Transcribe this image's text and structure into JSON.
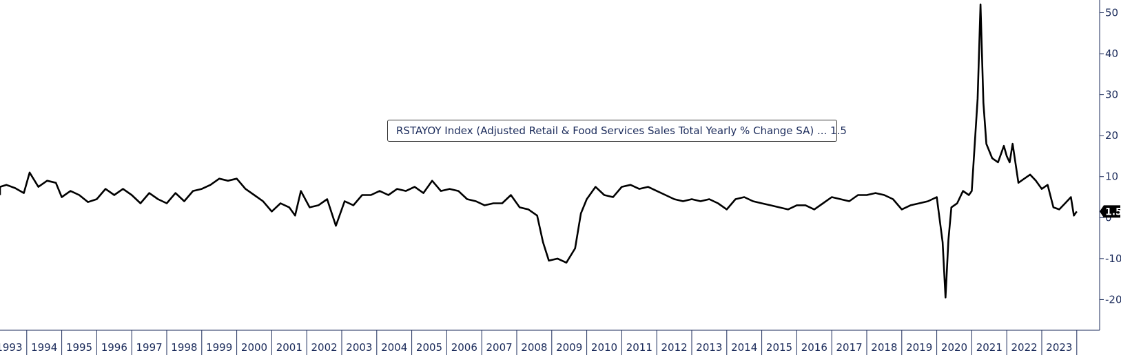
{
  "chart_data": {
    "type": "line",
    "x_start": "1993-01",
    "x_end": "2023-12",
    "x_tick_labels": [
      "1993",
      "1994",
      "1995",
      "1996",
      "1997",
      "1998",
      "1999",
      "2000",
      "2001",
      "2002",
      "2003",
      "2004",
      "2005",
      "2006",
      "2007",
      "2008",
      "2009",
      "2010",
      "2011",
      "2012",
      "2013",
      "2014",
      "2015",
      "2016",
      "2017",
      "2018",
      "2019",
      "2020",
      "2021",
      "2022",
      "2023"
    ],
    "y_ticks": [
      50,
      40,
      30,
      20,
      10,
      0,
      -10,
      -20
    ],
    "y_tick_labels": [
      "50",
      "40",
      "30",
      "20",
      "10",
      "0",
      "-10",
      "-20"
    ],
    "ylim": [
      -27,
      53
    ],
    "grid": false,
    "legend": {
      "placement": "center",
      "text": "RSTAYOY Index (Adjusted Retail & Food Services Sales Total Yearly % Change SA) ... 1.5"
    },
    "last_value_label": "1.5",
    "series": [
      {
        "label": "RSTAYOY Index",
        "color": "#000000",
        "points": [
          [
            "1993-01",
            5.5
          ],
          [
            "1993-03",
            7.5
          ],
          [
            "1993-06",
            8.0
          ],
          [
            "1993-09",
            7.2
          ],
          [
            "1993-12",
            6.0
          ],
          [
            "1994-02",
            11.0
          ],
          [
            "1994-05",
            7.5
          ],
          [
            "1994-08",
            9.0
          ],
          [
            "1994-11",
            8.5
          ],
          [
            "1995-01",
            5.0
          ],
          [
            "1995-04",
            6.5
          ],
          [
            "1995-07",
            5.5
          ],
          [
            "1995-10",
            3.8
          ],
          [
            "1996-01",
            4.5
          ],
          [
            "1996-04",
            7.0
          ],
          [
            "1996-07",
            5.5
          ],
          [
            "1996-10",
            7.0
          ],
          [
            "1997-01",
            5.5
          ],
          [
            "1997-04",
            3.5
          ],
          [
            "1997-07",
            6.0
          ],
          [
            "1997-10",
            4.5
          ],
          [
            "1998-01",
            3.5
          ],
          [
            "1998-04",
            6.0
          ],
          [
            "1998-07",
            4.0
          ],
          [
            "1998-10",
            6.5
          ],
          [
            "1999-01",
            7.0
          ],
          [
            "1999-04",
            8.0
          ],
          [
            "1999-07",
            9.5
          ],
          [
            "1999-10",
            9.0
          ],
          [
            "2000-01",
            9.5
          ],
          [
            "2000-04",
            7.0
          ],
          [
            "2000-07",
            5.5
          ],
          [
            "2000-10",
            4.0
          ],
          [
            "2001-01",
            1.5
          ],
          [
            "2001-04",
            3.5
          ],
          [
            "2001-07",
            2.5
          ],
          [
            "2001-09",
            0.5
          ],
          [
            "2001-11",
            6.5
          ],
          [
            "2002-02",
            2.5
          ],
          [
            "2002-05",
            3.0
          ],
          [
            "2002-08",
            4.5
          ],
          [
            "2002-11",
            -2.0
          ],
          [
            "2003-02",
            4.0
          ],
          [
            "2003-05",
            3.0
          ],
          [
            "2003-08",
            5.5
          ],
          [
            "2003-11",
            5.5
          ],
          [
            "2004-02",
            6.5
          ],
          [
            "2004-05",
            5.5
          ],
          [
            "2004-08",
            7.0
          ],
          [
            "2004-11",
            6.5
          ],
          [
            "2005-02",
            7.5
          ],
          [
            "2005-05",
            6.0
          ],
          [
            "2005-08",
            9.0
          ],
          [
            "2005-11",
            6.5
          ],
          [
            "2006-02",
            7.0
          ],
          [
            "2006-05",
            6.5
          ],
          [
            "2006-08",
            4.5
          ],
          [
            "2006-11",
            4.0
          ],
          [
            "2007-02",
            3.0
          ],
          [
            "2007-05",
            3.5
          ],
          [
            "2007-08",
            3.5
          ],
          [
            "2007-11",
            5.5
          ],
          [
            "2008-02",
            2.5
          ],
          [
            "2008-05",
            2.0
          ],
          [
            "2008-08",
            0.5
          ],
          [
            "2008-10",
            -6.0
          ],
          [
            "2008-12",
            -10.5
          ],
          [
            "2009-03",
            -10.0
          ],
          [
            "2009-06",
            -11.0
          ],
          [
            "2009-09",
            -7.5
          ],
          [
            "2009-11",
            1.0
          ],
          [
            "2010-01",
            4.5
          ],
          [
            "2010-04",
            7.5
          ],
          [
            "2010-07",
            5.5
          ],
          [
            "2010-10",
            5.0
          ],
          [
            "2011-01",
            7.5
          ],
          [
            "2011-04",
            8.0
          ],
          [
            "2011-07",
            7.0
          ],
          [
            "2011-10",
            7.5
          ],
          [
            "2012-01",
            6.5
          ],
          [
            "2012-04",
            5.5
          ],
          [
            "2012-07",
            4.5
          ],
          [
            "2012-10",
            4.0
          ],
          [
            "2013-01",
            4.5
          ],
          [
            "2013-04",
            4.0
          ],
          [
            "2013-07",
            4.5
          ],
          [
            "2013-10",
            3.5
          ],
          [
            "2014-01",
            2.0
          ],
          [
            "2014-04",
            4.5
          ],
          [
            "2014-07",
            5.0
          ],
          [
            "2014-10",
            4.0
          ],
          [
            "2015-01",
            3.5
          ],
          [
            "2015-04",
            3.0
          ],
          [
            "2015-07",
            2.5
          ],
          [
            "2015-10",
            2.0
          ],
          [
            "2016-01",
            3.0
          ],
          [
            "2016-04",
            3.0
          ],
          [
            "2016-07",
            2.0
          ],
          [
            "2016-10",
            3.5
          ],
          [
            "2017-01",
            5.0
          ],
          [
            "2017-04",
            4.5
          ],
          [
            "2017-07",
            4.0
          ],
          [
            "2017-10",
            5.5
          ],
          [
            "2018-01",
            5.5
          ],
          [
            "2018-04",
            6.0
          ],
          [
            "2018-07",
            5.5
          ],
          [
            "2018-10",
            4.5
          ],
          [
            "2019-01",
            2.0
          ],
          [
            "2019-04",
            3.0
          ],
          [
            "2019-07",
            3.5
          ],
          [
            "2019-10",
            4.0
          ],
          [
            "2020-01",
            5.0
          ],
          [
            "2020-03",
            -6.0
          ],
          [
            "2020-04",
            -19.5
          ],
          [
            "2020-05",
            -5.5
          ],
          [
            "2020-06",
            2.5
          ],
          [
            "2020-08",
            3.5
          ],
          [
            "2020-10",
            6.5
          ],
          [
            "2020-12",
            5.5
          ],
          [
            "2021-01",
            6.5
          ],
          [
            "2021-03",
            29.0
          ],
          [
            "2021-04",
            52.0
          ],
          [
            "2021-05",
            28.0
          ],
          [
            "2021-06",
            18.0
          ],
          [
            "2021-08",
            14.5
          ],
          [
            "2021-10",
            13.5
          ],
          [
            "2021-12",
            17.5
          ],
          [
            "2022-01",
            15.0
          ],
          [
            "2022-02",
            13.5
          ],
          [
            "2022-03",
            18.0
          ],
          [
            "2022-05",
            8.5
          ],
          [
            "2022-07",
            9.5
          ],
          [
            "2022-09",
            10.5
          ],
          [
            "2022-11",
            9.0
          ],
          [
            "2023-01",
            7.0
          ],
          [
            "2023-03",
            8.0
          ],
          [
            "2023-05",
            2.5
          ],
          [
            "2023-07",
            2.0
          ],
          [
            "2023-09",
            3.5
          ],
          [
            "2023-11",
            5.0
          ],
          [
            "2023-12",
            0.5
          ],
          [
            "2024-01",
            1.5
          ]
        ]
      }
    ]
  }
}
